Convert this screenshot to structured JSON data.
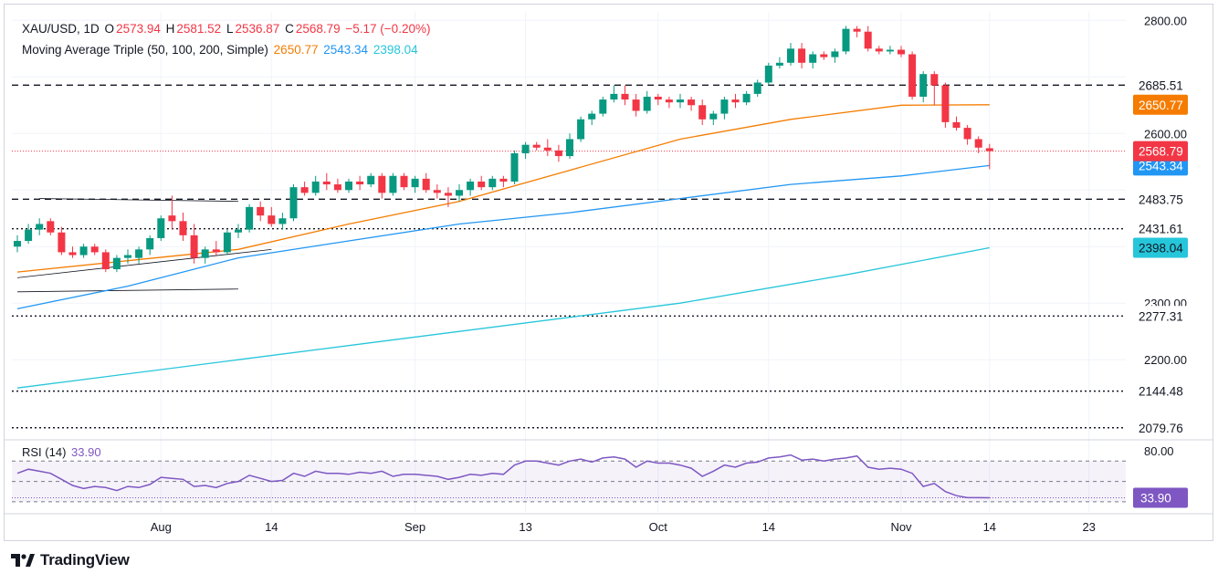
{
  "header": {
    "symbol": "XAU/USD, 1D",
    "o_label": "O",
    "open": "2573.94",
    "h_label": "H",
    "high": "2581.52",
    "l_label": "L",
    "low": "2536.87",
    "c_label": "C",
    "close": "2568.79",
    "change": "−5.17 (−0.20%)",
    "ma_title": "Moving Average Triple (50, 100, 200, Simple)",
    "ma50": "2650.77",
    "ma100": "2543.34",
    "ma200": "2398.04"
  },
  "rsi_label": {
    "name": "RSI (14)",
    "value": "33.90"
  },
  "brand": "TradingView",
  "colors": {
    "up": "#089981",
    "down": "#f23645",
    "ma50": "#f57c00",
    "ma100": "#2196f3",
    "ma200": "#26c6da",
    "rsi": "#7e57c2",
    "text": "#131722",
    "price_tag": "#f23645"
  },
  "chart_data": [
    {
      "type": "candlestick",
      "title": "XAU/USD, 1D",
      "x_ticks": [
        "Aug",
        "14",
        "Sep",
        "13",
        "Oct",
        "14",
        "Nov",
        "14",
        "23"
      ],
      "y_ticks": [
        "2200.00",
        "2300.00",
        "2600.00",
        "2800.00"
      ],
      "ylim": [
        2060,
        2815
      ],
      "candles": [
        [
          2400,
          2420,
          2390,
          2410
        ],
        [
          2410,
          2440,
          2405,
          2430
        ],
        [
          2430,
          2450,
          2420,
          2440
        ],
        [
          2445,
          2450,
          2420,
          2425
        ],
        [
          2425,
          2435,
          2385,
          2390
        ],
        [
          2390,
          2400,
          2380,
          2385
        ],
        [
          2385,
          2405,
          2380,
          2400
        ],
        [
          2400,
          2405,
          2385,
          2390
        ],
        [
          2390,
          2395,
          2355,
          2360
        ],
        [
          2360,
          2385,
          2355,
          2380
        ],
        [
          2380,
          2395,
          2370,
          2385
        ],
        [
          2380,
          2400,
          2370,
          2395
        ],
        [
          2395,
          2420,
          2385,
          2415
        ],
        [
          2415,
          2455,
          2410,
          2450
        ],
        [
          2455,
          2490,
          2430,
          2445
        ],
        [
          2445,
          2460,
          2410,
          2420
        ],
        [
          2420,
          2440,
          2370,
          2380
        ],
        [
          2380,
          2400,
          2370,
          2395
        ],
        [
          2395,
          2410,
          2385,
          2390
        ],
        [
          2390,
          2430,
          2385,
          2425
        ],
        [
          2425,
          2440,
          2415,
          2430
        ],
        [
          2430,
          2475,
          2425,
          2470
        ],
        [
          2470,
          2480,
          2445,
          2455
        ],
        [
          2455,
          2470,
          2435,
          2440
        ],
        [
          2440,
          2460,
          2430,
          2450
        ],
        [
          2450,
          2510,
          2445,
          2505
        ],
        [
          2505,
          2515,
          2490,
          2495
        ],
        [
          2495,
          2525,
          2490,
          2515
        ],
        [
          2515,
          2530,
          2500,
          2510
        ],
        [
          2510,
          2520,
          2495,
          2500
        ],
        [
          2500,
          2520,
          2495,
          2515
        ],
        [
          2515,
          2525,
          2500,
          2510
        ],
        [
          2510,
          2530,
          2505,
          2525
        ],
        [
          2525,
          2530,
          2485,
          2495
        ],
        [
          2495,
          2530,
          2490,
          2525
        ],
        [
          2525,
          2530,
          2500,
          2505
        ],
        [
          2505,
          2525,
          2495,
          2520
        ],
        [
          2520,
          2530,
          2495,
          2500
        ],
        [
          2500,
          2510,
          2485,
          2495
        ],
        [
          2495,
          2505,
          2470,
          2490
        ],
        [
          2490,
          2510,
          2480,
          2500
        ],
        [
          2500,
          2520,
          2490,
          2515
        ],
        [
          2515,
          2525,
          2500,
          2505
        ],
        [
          2505,
          2525,
          2500,
          2520
        ],
        [
          2520,
          2525,
          2505,
          2515
        ],
        [
          2515,
          2570,
          2510,
          2565
        ],
        [
          2565,
          2585,
          2555,
          2580
        ],
        [
          2580,
          2585,
          2570,
          2575
        ],
        [
          2575,
          2590,
          2560,
          2570
        ],
        [
          2570,
          2580,
          2550,
          2560
        ],
        [
          2560,
          2600,
          2555,
          2590
        ],
        [
          2590,
          2630,
          2585,
          2625
        ],
        [
          2625,
          2640,
          2615,
          2635
        ],
        [
          2635,
          2665,
          2630,
          2660
        ],
        [
          2660,
          2685,
          2655,
          2670
        ],
        [
          2670,
          2685,
          2650,
          2660
        ],
        [
          2660,
          2670,
          2630,
          2640
        ],
        [
          2640,
          2675,
          2635,
          2665
        ],
        [
          2665,
          2670,
          2650,
          2660
        ],
        [
          2660,
          2665,
          2645,
          2655
        ],
        [
          2655,
          2670,
          2645,
          2660
        ],
        [
          2660,
          2665,
          2640,
          2650
        ],
        [
          2650,
          2660,
          2615,
          2625
        ],
        [
          2625,
          2640,
          2615,
          2635
        ],
        [
          2635,
          2665,
          2625,
          2660
        ],
        [
          2660,
          2670,
          2645,
          2655
        ],
        [
          2655,
          2675,
          2650,
          2670
        ],
        [
          2670,
          2695,
          2665,
          2690
        ],
        [
          2690,
          2725,
          2685,
          2720
        ],
        [
          2720,
          2735,
          2715,
          2725
        ],
        [
          2725,
          2760,
          2720,
          2750
        ],
        [
          2750,
          2760,
          2715,
          2725
        ],
        [
          2725,
          2745,
          2715,
          2740
        ],
        [
          2740,
          2745,
          2730,
          2735
        ],
        [
          2735,
          2750,
          2725,
          2745
        ],
        [
          2745,
          2790,
          2740,
          2785
        ],
        [
          2785,
          2790,
          2770,
          2780
        ],
        [
          2780,
          2790,
          2745,
          2750
        ],
        [
          2750,
          2755,
          2740,
          2745
        ],
        [
          2745,
          2755,
          2740,
          2748
        ],
        [
          2748,
          2755,
          2735,
          2740
        ],
        [
          2740,
          2745,
          2660,
          2665
        ],
        [
          2665,
          2710,
          2655,
          2705
        ],
        [
          2705,
          2710,
          2650,
          2685
        ],
        [
          2685,
          2690,
          2610,
          2620
        ],
        [
          2620,
          2630,
          2605,
          2610
        ],
        [
          2610,
          2615,
          2580,
          2590
        ],
        [
          2590,
          2595,
          2565,
          2575
        ],
        [
          2573.94,
          2581.52,
          2536.87,
          2568.79
        ]
      ],
      "price_levels": [
        "2685.51",
        "2483.75",
        "2431.61",
        "2277.31",
        "2144.48",
        "2079.76"
      ],
      "ma50": [
        [
          0,
          2355
        ],
        [
          10,
          2375
        ],
        [
          20,
          2395
        ],
        [
          30,
          2440
        ],
        [
          40,
          2480
        ],
        [
          50,
          2535
        ],
        [
          60,
          2590
        ],
        [
          70,
          2625
        ],
        [
          80,
          2650
        ],
        [
          88,
          2650.77
        ]
      ],
      "ma100": [
        [
          0,
          2290
        ],
        [
          10,
          2330
        ],
        [
          20,
          2380
        ],
        [
          30,
          2410
        ],
        [
          40,
          2440
        ],
        [
          50,
          2460
        ],
        [
          60,
          2485
        ],
        [
          70,
          2510
        ],
        [
          80,
          2525
        ],
        [
          88,
          2543.34
        ]
      ],
      "ma200": [
        [
          0,
          2150
        ],
        [
          20,
          2200
        ],
        [
          40,
          2250
        ],
        [
          60,
          2300
        ],
        [
          75,
          2350
        ],
        [
          88,
          2398.04
        ]
      ],
      "series_labels": [
        "2568.79",
        "2543.34",
        "2398.04",
        "2650.77"
      ]
    },
    {
      "type": "line",
      "title": "RSI (14)",
      "y_ticks": [
        "80.00"
      ],
      "ylim": [
        20,
        90
      ],
      "bands": [
        30,
        70
      ],
      "values": [
        58,
        62,
        60,
        58,
        52,
        46,
        43,
        45,
        44,
        41,
        45,
        44,
        47,
        54,
        53,
        52,
        45,
        46,
        44,
        48,
        50,
        56,
        53,
        50,
        51,
        58,
        55,
        60,
        58,
        58,
        57,
        59,
        58,
        60,
        55,
        57,
        57,
        56,
        55,
        52,
        54,
        57,
        56,
        58,
        57,
        66,
        70,
        70,
        68,
        66,
        70,
        72,
        69,
        73,
        74,
        72,
        64,
        70,
        68,
        68,
        66,
        63,
        55,
        60,
        66,
        64,
        68,
        69,
        73,
        74,
        76,
        71,
        72,
        70,
        72,
        73,
        75,
        64,
        62,
        63,
        62,
        58,
        45,
        48,
        40,
        36,
        34,
        34,
        33.9
      ],
      "current_label": "33.90"
    }
  ]
}
